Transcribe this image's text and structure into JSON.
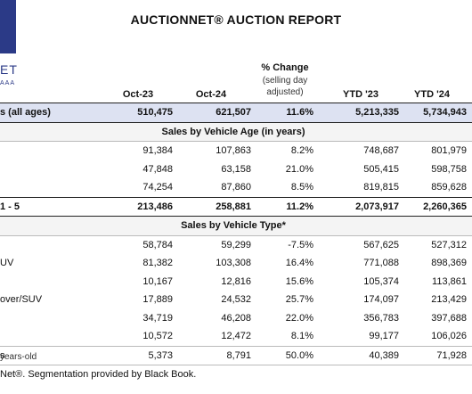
{
  "logo": {
    "line1": "ET",
    "line2": "AAA"
  },
  "title": "AUCTIONNET® AUCTION REPORT",
  "headers": {
    "oct23": "Oct-23",
    "oct24": "Oct-24",
    "pct": "% Change",
    "pct_sub1": "(selling day",
    "pct_sub2": "adjusted)",
    "ytd23": "YTD '23",
    "ytd24": "YTD '24"
  },
  "total_row": {
    "label": "s (all ages)",
    "values": [
      "510,475",
      "621,507",
      "11.6%",
      "5,213,335",
      "5,734,943"
    ]
  },
  "section_age": "Sales by Vehicle Age (in years)",
  "age_rows": [
    {
      "label": "",
      "values": [
        "91,384",
        "107,863",
        "8.2%",
        "748,687",
        "801,979"
      ]
    },
    {
      "label": "",
      "values": [
        "47,848",
        "63,158",
        "21.0%",
        "505,415",
        "598,758"
      ]
    },
    {
      "label": "",
      "values": [
        "74,254",
        "87,860",
        "8.5%",
        "819,815",
        "859,628"
      ]
    }
  ],
  "age_total": {
    "label": "1 - 5",
    "values": [
      "213,486",
      "258,881",
      "11.2%",
      "2,073,917",
      "2,260,365"
    ]
  },
  "section_type": "Sales by Vehicle Type*",
  "type_rows": [
    {
      "label": "",
      "values": [
        "58,784",
        "59,299",
        "-7.5%",
        "567,625",
        "527,312"
      ]
    },
    {
      "label": "UV",
      "values": [
        "81,382",
        "103,308",
        "16.4%",
        "771,088",
        "898,369"
      ]
    },
    {
      "label": "",
      "values": [
        "10,167",
        "12,816",
        "15.6%",
        "105,374",
        "113,861"
      ]
    },
    {
      "label": "over/SUV",
      "values": [
        "17,889",
        "24,532",
        "25.7%",
        "174,097",
        "213,429"
      ]
    },
    {
      "label": "",
      "values": [
        "34,719",
        "46,208",
        "22.0%",
        "356,783",
        "397,688"
      ]
    },
    {
      "label": "",
      "values": [
        "10,572",
        "12,472",
        "8.1%",
        "99,177",
        "106,026"
      ]
    }
  ],
  "last_row": {
    "label": "s",
    "values": [
      "5,373",
      "8,791",
      "50.0%",
      "40,389",
      "71,928"
    ]
  },
  "footnote1": "years-old",
  "footnote2": "Net®. Segmentation provided by Black Book."
}
